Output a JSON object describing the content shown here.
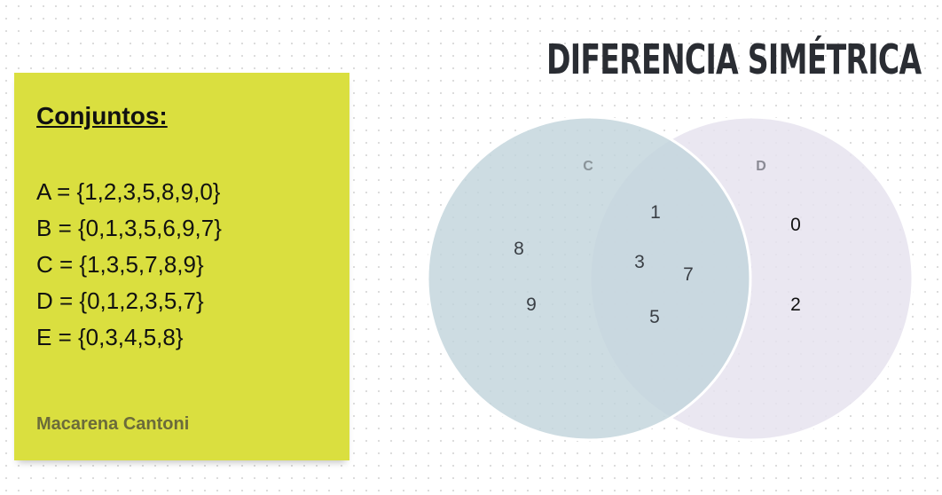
{
  "note": {
    "heading": "Conjuntos:",
    "sets": [
      "A = {1,2,3,5,8,9,0}",
      "B = {0,1,3,5,6,9,7}",
      "C = {1,3,5,7,8,9}",
      "D = {0,1,2,3,5,7}",
      "E = {0,3,4,5,8}"
    ],
    "author": "Macarena Cantoni",
    "background_color": "#dadf3f"
  },
  "title": "DIFERENCIA SIMÉTRICA",
  "venn": {
    "left_set": {
      "label": "C",
      "color": "#c9d9e0",
      "only_elements": [
        "8",
        "9"
      ]
    },
    "right_set": {
      "label": "D",
      "color": "#e6e3ee",
      "only_elements": [
        "0",
        "2"
      ]
    },
    "intersection_elements": [
      "1",
      "3",
      "7",
      "5"
    ]
  }
}
